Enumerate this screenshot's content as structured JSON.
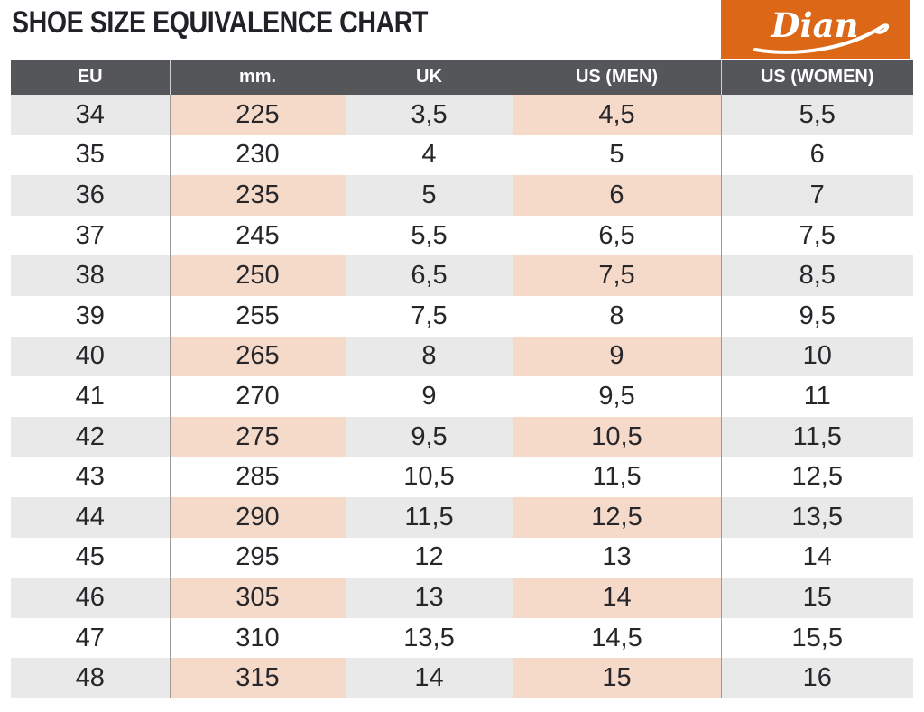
{
  "title": "SHOE SIZE EQUIVALENCE CHART",
  "logo": {
    "text": "Dian",
    "bg_color": "#DC6817",
    "text_color": "#FFFFFF"
  },
  "colors": {
    "header_bg": "#55565A",
    "header_text": "#FFFFFF",
    "row_alt_gray": "#E9E9E9",
    "row_alt_pink": "#F5D9C9",
    "cell_text": "#26262B",
    "column_border": "#9B9B9B",
    "brand_orange": "#DC6817"
  },
  "chart_data": {
    "type": "table",
    "title": "SHOE SIZE EQUIVALENCE CHART",
    "columns": [
      "EU",
      "mm.",
      "UK",
      "US (MEN)",
      "US (WOMEN)"
    ],
    "highlighted_columns": [
      "mm.",
      "US (MEN)"
    ],
    "rows": [
      [
        "34",
        "225",
        "3,5",
        "4,5",
        "5,5"
      ],
      [
        "35",
        "230",
        "4",
        "5",
        "6"
      ],
      [
        "36",
        "235",
        "5",
        "6",
        "7"
      ],
      [
        "37",
        "245",
        "5,5",
        "6,5",
        "7,5"
      ],
      [
        "38",
        "250",
        "6,5",
        "7,5",
        "8,5"
      ],
      [
        "39",
        "255",
        "7,5",
        "8",
        "9,5"
      ],
      [
        "40",
        "265",
        "8",
        "9",
        "10"
      ],
      [
        "41",
        "270",
        "9",
        "9,5",
        "11"
      ],
      [
        "42",
        "275",
        "9,5",
        "10,5",
        "11,5"
      ],
      [
        "43",
        "285",
        "10,5",
        "11,5",
        "12,5"
      ],
      [
        "44",
        "290",
        "11,5",
        "12,5",
        "13,5"
      ],
      [
        "45",
        "295",
        "12",
        "13",
        "14"
      ],
      [
        "46",
        "305",
        "13",
        "14",
        "15"
      ],
      [
        "47",
        "310",
        "13,5",
        "14,5",
        "15,5"
      ],
      [
        "48",
        "315",
        "14",
        "15",
        "16"
      ]
    ]
  }
}
